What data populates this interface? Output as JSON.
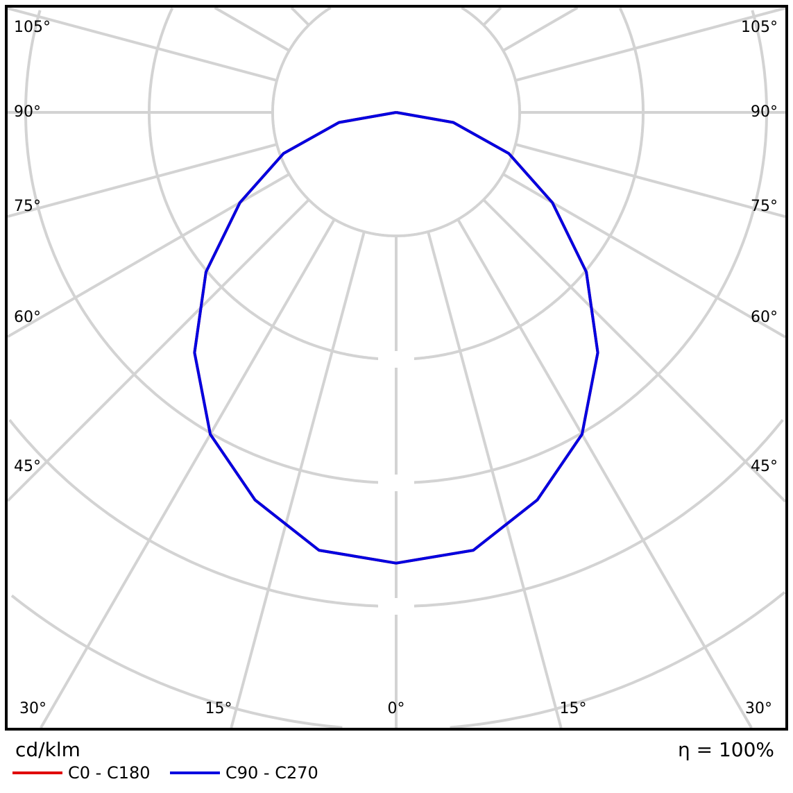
{
  "chart_data": {
    "type": "polar",
    "unit_label": "cd/klm",
    "efficiency_label": "η = 100%",
    "angle_labels_left": [
      "105°",
      "90°",
      "75°",
      "60°",
      "45°",
      "30°"
    ],
    "angle_labels_right": [
      "105°",
      "90°",
      "75°",
      "60°",
      "45°",
      "30°"
    ],
    "angle_labels_bottom": [
      "15°",
      "0°",
      "15°"
    ],
    "grid": true,
    "legend_placement": "bottom-left",
    "angles_deg": [
      0,
      10,
      20,
      30,
      40,
      50,
      60,
      70,
      80,
      90
    ],
    "series": [
      {
        "name": "C0 - C180",
        "color": "#e00000",
        "values": [
          3.65,
          3.6,
          3.34,
          3.01,
          2.54,
          2.01,
          1.46,
          0.97,
          0.47,
          0
        ]
      },
      {
        "name": "C90 - C270",
        "color": "#0000e0",
        "values": [
          3.65,
          3.6,
          3.34,
          3.01,
          2.54,
          2.01,
          1.46,
          0.97,
          0.47,
          0
        ]
      }
    ]
  }
}
